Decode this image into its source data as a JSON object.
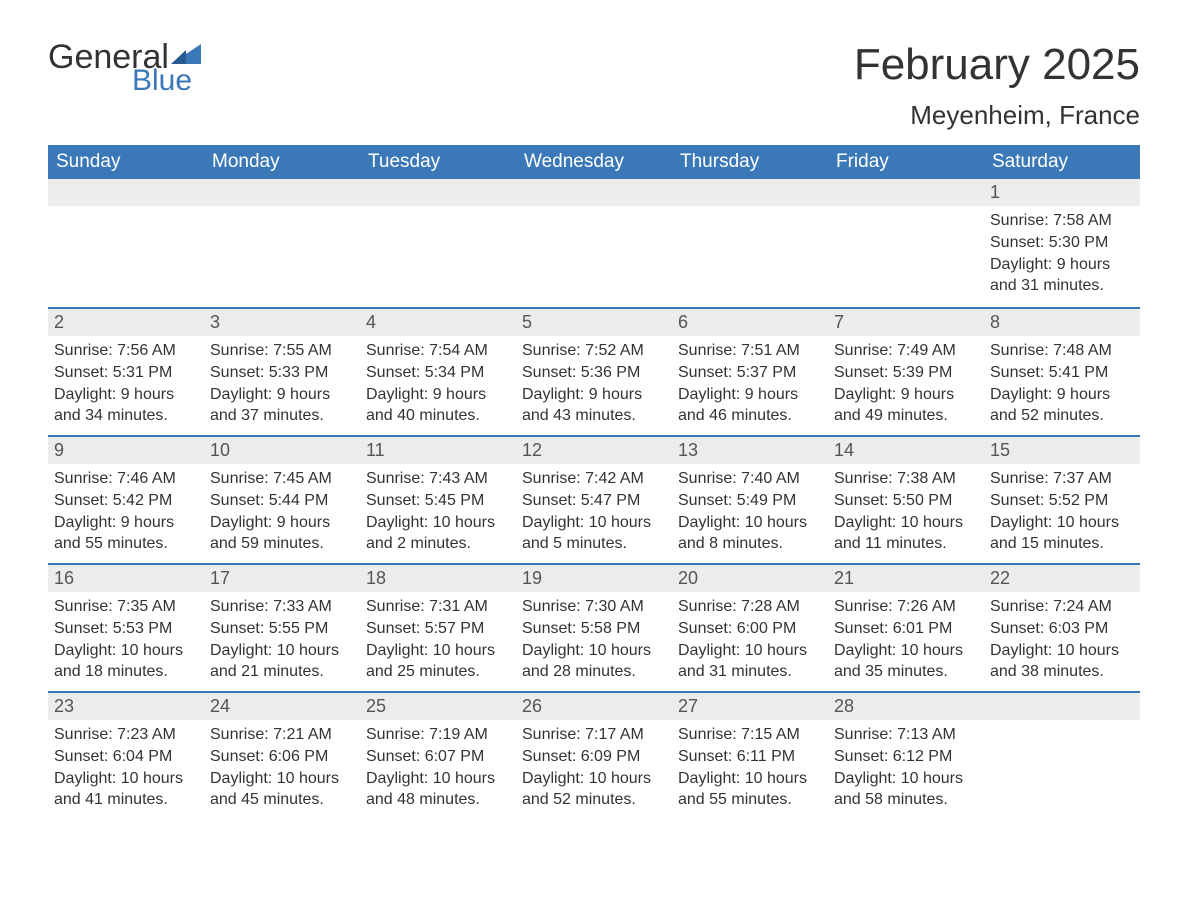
{
  "logo": {
    "text_general": "General",
    "text_blue": "Blue",
    "flag_color": "#3b78b8"
  },
  "title": "February 2025",
  "location": "Meyenheim, France",
  "colors": {
    "header_bg": "#3b78b8",
    "header_text": "#ffffff",
    "daynum_bg": "#ececec",
    "row_border": "#3b78b8",
    "body_text": "#333333",
    "page_bg": "#ffffff"
  },
  "typography": {
    "title_fontsize": 44,
    "subtitle_fontsize": 26,
    "header_fontsize": 19,
    "daynum_fontsize": 18,
    "body_fontsize": 16,
    "font_family": "Arial"
  },
  "weekdays": [
    "Sunday",
    "Monday",
    "Tuesday",
    "Wednesday",
    "Thursday",
    "Friday",
    "Saturday"
  ],
  "weeks": [
    [
      null,
      null,
      null,
      null,
      null,
      null,
      {
        "day": "1",
        "sunrise": "Sunrise: 7:58 AM",
        "sunset": "Sunset: 5:30 PM",
        "daylight1": "Daylight: 9 hours",
        "daylight2": "and 31 minutes."
      }
    ],
    [
      {
        "day": "2",
        "sunrise": "Sunrise: 7:56 AM",
        "sunset": "Sunset: 5:31 PM",
        "daylight1": "Daylight: 9 hours",
        "daylight2": "and 34 minutes."
      },
      {
        "day": "3",
        "sunrise": "Sunrise: 7:55 AM",
        "sunset": "Sunset: 5:33 PM",
        "daylight1": "Daylight: 9 hours",
        "daylight2": "and 37 minutes."
      },
      {
        "day": "4",
        "sunrise": "Sunrise: 7:54 AM",
        "sunset": "Sunset: 5:34 PM",
        "daylight1": "Daylight: 9 hours",
        "daylight2": "and 40 minutes."
      },
      {
        "day": "5",
        "sunrise": "Sunrise: 7:52 AM",
        "sunset": "Sunset: 5:36 PM",
        "daylight1": "Daylight: 9 hours",
        "daylight2": "and 43 minutes."
      },
      {
        "day": "6",
        "sunrise": "Sunrise: 7:51 AM",
        "sunset": "Sunset: 5:37 PM",
        "daylight1": "Daylight: 9 hours",
        "daylight2": "and 46 minutes."
      },
      {
        "day": "7",
        "sunrise": "Sunrise: 7:49 AM",
        "sunset": "Sunset: 5:39 PM",
        "daylight1": "Daylight: 9 hours",
        "daylight2": "and 49 minutes."
      },
      {
        "day": "8",
        "sunrise": "Sunrise: 7:48 AM",
        "sunset": "Sunset: 5:41 PM",
        "daylight1": "Daylight: 9 hours",
        "daylight2": "and 52 minutes."
      }
    ],
    [
      {
        "day": "9",
        "sunrise": "Sunrise: 7:46 AM",
        "sunset": "Sunset: 5:42 PM",
        "daylight1": "Daylight: 9 hours",
        "daylight2": "and 55 minutes."
      },
      {
        "day": "10",
        "sunrise": "Sunrise: 7:45 AM",
        "sunset": "Sunset: 5:44 PM",
        "daylight1": "Daylight: 9 hours",
        "daylight2": "and 59 minutes."
      },
      {
        "day": "11",
        "sunrise": "Sunrise: 7:43 AM",
        "sunset": "Sunset: 5:45 PM",
        "daylight1": "Daylight: 10 hours",
        "daylight2": "and 2 minutes."
      },
      {
        "day": "12",
        "sunrise": "Sunrise: 7:42 AM",
        "sunset": "Sunset: 5:47 PM",
        "daylight1": "Daylight: 10 hours",
        "daylight2": "and 5 minutes."
      },
      {
        "day": "13",
        "sunrise": "Sunrise: 7:40 AM",
        "sunset": "Sunset: 5:49 PM",
        "daylight1": "Daylight: 10 hours",
        "daylight2": "and 8 minutes."
      },
      {
        "day": "14",
        "sunrise": "Sunrise: 7:38 AM",
        "sunset": "Sunset: 5:50 PM",
        "daylight1": "Daylight: 10 hours",
        "daylight2": "and 11 minutes."
      },
      {
        "day": "15",
        "sunrise": "Sunrise: 7:37 AM",
        "sunset": "Sunset: 5:52 PM",
        "daylight1": "Daylight: 10 hours",
        "daylight2": "and 15 minutes."
      }
    ],
    [
      {
        "day": "16",
        "sunrise": "Sunrise: 7:35 AM",
        "sunset": "Sunset: 5:53 PM",
        "daylight1": "Daylight: 10 hours",
        "daylight2": "and 18 minutes."
      },
      {
        "day": "17",
        "sunrise": "Sunrise: 7:33 AM",
        "sunset": "Sunset: 5:55 PM",
        "daylight1": "Daylight: 10 hours",
        "daylight2": "and 21 minutes."
      },
      {
        "day": "18",
        "sunrise": "Sunrise: 7:31 AM",
        "sunset": "Sunset: 5:57 PM",
        "daylight1": "Daylight: 10 hours",
        "daylight2": "and 25 minutes."
      },
      {
        "day": "19",
        "sunrise": "Sunrise: 7:30 AM",
        "sunset": "Sunset: 5:58 PM",
        "daylight1": "Daylight: 10 hours",
        "daylight2": "and 28 minutes."
      },
      {
        "day": "20",
        "sunrise": "Sunrise: 7:28 AM",
        "sunset": "Sunset: 6:00 PM",
        "daylight1": "Daylight: 10 hours",
        "daylight2": "and 31 minutes."
      },
      {
        "day": "21",
        "sunrise": "Sunrise: 7:26 AM",
        "sunset": "Sunset: 6:01 PM",
        "daylight1": "Daylight: 10 hours",
        "daylight2": "and 35 minutes."
      },
      {
        "day": "22",
        "sunrise": "Sunrise: 7:24 AM",
        "sunset": "Sunset: 6:03 PM",
        "daylight1": "Daylight: 10 hours",
        "daylight2": "and 38 minutes."
      }
    ],
    [
      {
        "day": "23",
        "sunrise": "Sunrise: 7:23 AM",
        "sunset": "Sunset: 6:04 PM",
        "daylight1": "Daylight: 10 hours",
        "daylight2": "and 41 minutes."
      },
      {
        "day": "24",
        "sunrise": "Sunrise: 7:21 AM",
        "sunset": "Sunset: 6:06 PM",
        "daylight1": "Daylight: 10 hours",
        "daylight2": "and 45 minutes."
      },
      {
        "day": "25",
        "sunrise": "Sunrise: 7:19 AM",
        "sunset": "Sunset: 6:07 PM",
        "daylight1": "Daylight: 10 hours",
        "daylight2": "and 48 minutes."
      },
      {
        "day": "26",
        "sunrise": "Sunrise: 7:17 AM",
        "sunset": "Sunset: 6:09 PM",
        "daylight1": "Daylight: 10 hours",
        "daylight2": "and 52 minutes."
      },
      {
        "day": "27",
        "sunrise": "Sunrise: 7:15 AM",
        "sunset": "Sunset: 6:11 PM",
        "daylight1": "Daylight: 10 hours",
        "daylight2": "and 55 minutes."
      },
      {
        "day": "28",
        "sunrise": "Sunrise: 7:13 AM",
        "sunset": "Sunset: 6:12 PM",
        "daylight1": "Daylight: 10 hours",
        "daylight2": "and 58 minutes."
      },
      null
    ]
  ]
}
